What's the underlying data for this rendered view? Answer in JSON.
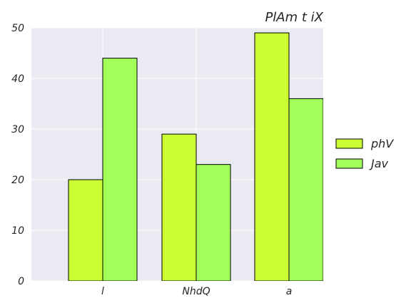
{
  "chart_data": {
    "type": "bar",
    "title": "PlAm t iX",
    "xlabel": "",
    "ylabel": "",
    "categories": [
      "l",
      "NhdQ",
      "a"
    ],
    "series": [
      {
        "name": "phV",
        "values": [
          20,
          29,
          49
        ],
        "color": "#ccff33"
      },
      {
        "name": "Jav",
        "values": [
          44,
          23,
          36
        ],
        "color": "#a3ff5a"
      }
    ],
    "ylim": [
      0,
      50
    ],
    "yticks": [
      "0",
      "10",
      "20",
      "30",
      "40",
      "50"
    ],
    "grid": true,
    "legend_position": "right",
    "background_color": "#eaeaf2",
    "bar_edge_color": "#000000"
  }
}
